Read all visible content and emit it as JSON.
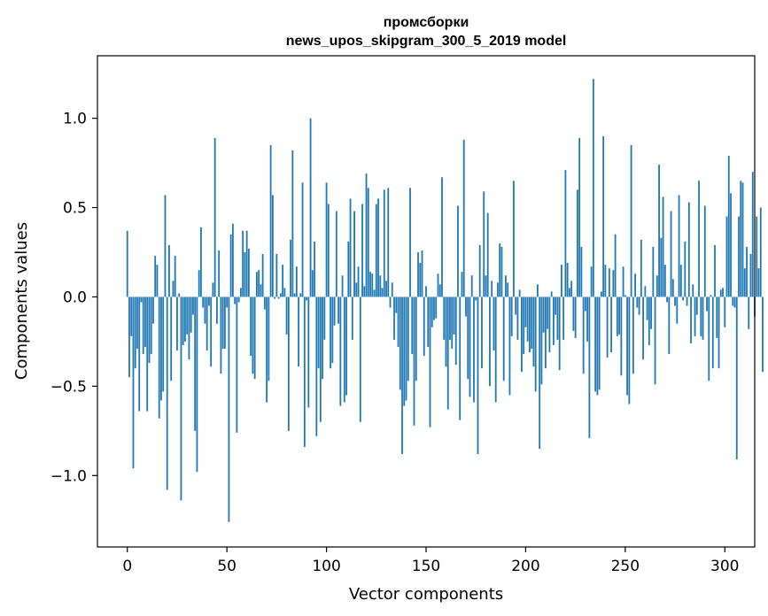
{
  "chart_data": {
    "type": "bar",
    "title_line1": "промсборки",
    "title_line2": "news_upos_skipgram_300_5_2019 model",
    "xlabel": "Vector components",
    "ylabel": "Components values",
    "xlim": [
      -15,
      315
    ],
    "ylim": [
      -1.4,
      1.35
    ],
    "xticks": [
      0,
      50,
      100,
      150,
      200,
      250,
      300
    ],
    "xtick_labels": [
      "0",
      "50",
      "100",
      "150",
      "200",
      "250",
      "300"
    ],
    "yticks": [
      -1.0,
      -0.5,
      0.0,
      0.5,
      1.0
    ],
    "ytick_labels": [
      "−1.0",
      "−0.5",
      "0.0",
      "0.5",
      "1.0"
    ],
    "bar_color": "#1f77b4",
    "grid": false,
    "values": [
      0.37,
      -0.45,
      -0.22,
      -0.96,
      -0.4,
      -0.29,
      -0.64,
      -0.03,
      -0.32,
      -0.28,
      -0.64,
      -0.37,
      -0.32,
      -0.15,
      0.23,
      0.18,
      -0.68,
      -0.58,
      -0.53,
      0.57,
      -1.08,
      0.29,
      -0.47,
      0.09,
      0.23,
      -0.3,
      0.02,
      -1.14,
      -0.27,
      -0.25,
      -0.21,
      -0.35,
      -0.2,
      -0.1,
      -0.75,
      -0.98,
      0.15,
      0.39,
      -0.06,
      -0.15,
      -0.3,
      -0.05,
      -0.39,
      0.08,
      0.89,
      -0.15,
      0.26,
      -0.43,
      -0.29,
      -0.29,
      -0.06,
      -1.26,
      0.35,
      0.41,
      -0.04,
      -0.76,
      -0.03,
      0.05,
      0.37,
      0.25,
      0.37,
      0.27,
      -0.33,
      -0.43,
      -0.46,
      0.14,
      0.15,
      0.07,
      0.24,
      -0.07,
      -0.59,
      -0.47,
      0.85,
      0.57,
      -0.01,
      0.24,
      -0.01,
      0.02,
      0.18,
      0.05,
      -0.21,
      -0.75,
      0.32,
      0.82,
      0.02,
      0.17,
      -0.39,
      0.02,
      0.64,
      -0.84,
      -0.02,
      -0.62,
      1.0,
      0.15,
      0.31,
      -0.78,
      -0.4,
      -0.7,
      -0.46,
      -0.24,
      0.64,
      0.52,
      -0.4,
      -0.37,
      -0.16,
      0.48,
      -0.15,
      -0.61,
      0.12,
      -0.59,
      -0.55,
      0.31,
      0.55,
      -0.24,
      0.48,
      0.08,
      0.17,
      -0.7,
      0.52,
      0.06,
      0.69,
      0.61,
      0.14,
      0.13,
      0.04,
      0.52,
      0.55,
      0.12,
      0.05,
      0.6,
      0.09,
      0.61,
      -0.06,
      0.08,
      -0.24,
      -0.09,
      -0.28,
      -0.52,
      -0.88,
      -0.61,
      -0.58,
      -0.47,
      0.61,
      -0.32,
      -0.72,
      -0.47,
      0.25,
      0.19,
      0.26,
      -0.33,
      0.06,
      -0.28,
      -0.73,
      -0.17,
      -0.13,
      -0.12,
      0.13,
      0.07,
      0.67,
      -0.24,
      -0.39,
      -0.63,
      -0.24,
      -0.29,
      -0.21,
      -0.38,
      0.51,
      -0.69,
      0.14,
      0.88,
      -0.11,
      -0.46,
      -0.56,
      0.12,
      -0.59,
      -0.02,
      -0.88,
      0.29,
      -0.4,
      0.59,
      0.12,
      0.47,
      -0.5,
      0.09,
      -0.3,
      -0.59,
      0.08,
      0.3,
      0.28,
      -0.47,
      0.12,
      0.08,
      -0.55,
      -0.22,
      0.65,
      -0.1,
      -0.24,
      0.04,
      -0.42,
      -0.32,
      -0.17,
      -0.25,
      -0.31,
      -0.29,
      -0.39,
      -0.53,
      0.07,
      -0.85,
      -0.49,
      -0.2,
      -0.4,
      -0.18,
      -0.31,
      0.03,
      -0.27,
      -0.1,
      -0.24,
      -0.41,
      0.18,
      -0.24,
      0.71,
      0.19,
      0.05,
      0.09,
      -0.19,
      -0.23,
      0.6,
      0.89,
      0.28,
      -0.43,
      -0.08,
      -0.25,
      -0.79,
      0.17,
      1.22,
      -0.53,
      -0.55,
      -0.52,
      0.03,
      0.9,
      0.18,
      -0.34,
      0.16,
      -0.31,
      0.15,
      0.35,
      -0.22,
      -0.21,
      -0.44,
      0.17,
      0.01,
      -0.55,
      -0.6,
      0.85,
      -0.43,
      0.13,
      -0.06,
      -0.1,
      0.32,
      -0.35,
      0.06,
      -0.13,
      -0.27,
      -0.18,
      0.28,
      -0.49,
      0.12,
      0.74,
      0.33,
      0.56,
      0.18,
      -0.03,
      -0.32,
      0.48,
      0.1,
      -0.05,
      -0.15,
      0.57,
      0.18,
      -0.02,
      0.31,
      -0.05,
      0.53,
      -0.26,
      0.07,
      -0.22,
      -0.1,
      0.65,
      -0.22,
      -0.24,
      0.51,
      -0.08,
      -0.47,
      0.01,
      -0.4,
      0.29,
      -0.23,
      -0.4,
      0.04,
      0.05,
      -0.17,
      0.45,
      0.79,
      0.58,
      -0.05,
      -0.06,
      -0.91,
      0.45,
      0.65,
      0.64,
      0.16,
      0.28,
      -0.18,
      0.24,
      0.7,
      -0.11,
      0.45,
      0.16,
      0.5,
      -0.42
    ]
  }
}
